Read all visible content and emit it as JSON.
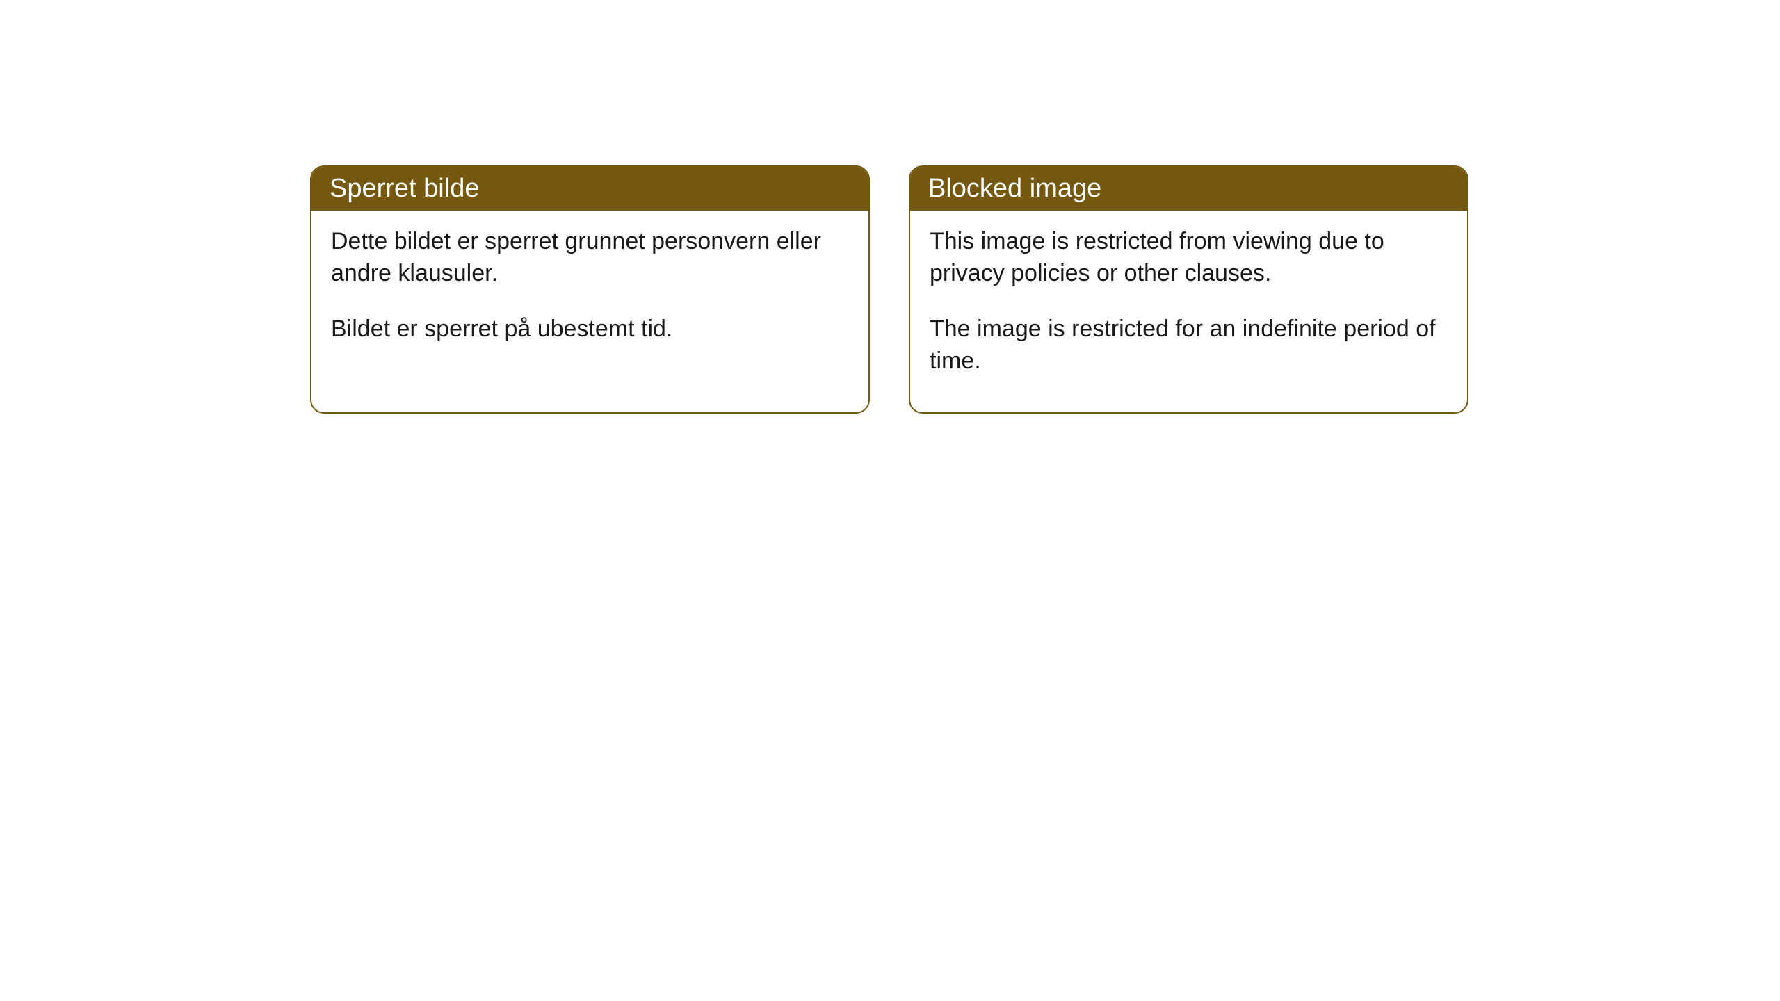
{
  "cards": [
    {
      "title": "Sperret bilde",
      "paragraph1": "Dette bildet er sperret grunnet personvern eller andre klausuler.",
      "paragraph2": "Bildet er sperret på ubestemt tid."
    },
    {
      "title": "Blocked image",
      "paragraph1": "This image is restricted from viewing due to privacy policies or other clauses.",
      "paragraph2": "The image is restricted for an indefinite period of time."
    }
  ],
  "styling": {
    "header_background": "#75580f",
    "header_text_color": "#ffffff",
    "border_color": "#75580f",
    "body_text_color": "#1a1a1a",
    "body_background": "#ffffff",
    "border_radius": "20px",
    "title_fontsize": 38,
    "body_fontsize": 34
  }
}
